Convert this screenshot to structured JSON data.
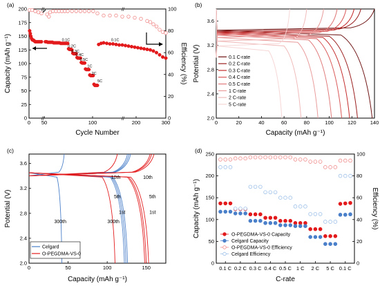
{
  "panels": [
    {
      "label": "(a)"
    },
    {
      "label": "(b)"
    },
    {
      "label": "(c)"
    },
    {
      "label": "(d)"
    }
  ],
  "colors": {
    "red": "#e31a1c",
    "pink": "#f08a8a",
    "blue": "#4a7fc9",
    "lightblue": "#9cbfe8",
    "darkred": "#7a0f0f",
    "b_series": [
      "#6e1212",
      "#9a1c1c",
      "#c42a2a",
      "#d95555",
      "#e07a7a",
      "#e99b9b",
      "#f0baba",
      "#f6d6d6"
    ]
  },
  "chart_data": [
    {
      "id": "a",
      "type": "scatter",
      "xlabel": "Cycle Number",
      "ylabel": "Capacity (mAh g⁻¹)",
      "y2label": "Efficiency (%)",
      "xticks": [
        "0",
        "50",
        "100",
        "200",
        "300"
      ],
      "yticks": [
        0,
        25,
        50,
        75,
        100,
        125,
        150,
        175,
        200
      ],
      "y2ticks": [
        0,
        20,
        40,
        60,
        80,
        100
      ],
      "ylim": [
        0,
        200
      ],
      "y2lim": [
        0,
        100
      ],
      "rate_labels": [
        {
          "text": "0.1C",
          "x": 57,
          "y": 141
        },
        {
          "text": "0.2C",
          "x": 65,
          "y": 130
        },
        {
          "text": "0.3C",
          "x": 69,
          "y": 120
        },
        {
          "text": "0.4C",
          "x": 74,
          "y": 114
        },
        {
          "text": "0.5C",
          "x": 79,
          "y": 105
        },
        {
          "text": "1C",
          "x": 86,
          "y": 93
        },
        {
          "text": "2C",
          "x": 91,
          "y": 80
        },
        {
          "text": "5C",
          "x": 97,
          "y": 66
        },
        {
          "text": "0.1C",
          "x": 137,
          "y": 141
        }
      ],
      "capacity_points": [
        [
          1,
          160
        ],
        [
          2,
          155
        ],
        [
          3,
          150
        ],
        [
          4,
          146
        ],
        [
          5,
          144
        ],
        [
          6,
          143
        ],
        [
          7,
          143
        ],
        [
          8,
          142
        ],
        [
          9,
          141
        ],
        [
          10,
          140
        ],
        [
          12,
          140
        ],
        [
          14,
          140
        ],
        [
          16,
          140
        ],
        [
          18,
          140
        ],
        [
          20,
          140
        ],
        [
          22,
          140
        ],
        [
          24,
          140
        ],
        [
          26,
          139
        ],
        [
          28,
          139
        ],
        [
          30,
          139
        ],
        [
          32,
          139
        ],
        [
          34,
          139
        ],
        [
          36,
          138
        ],
        [
          38,
          138
        ],
        [
          40,
          138
        ],
        [
          42,
          138
        ],
        [
          44,
          138
        ],
        [
          46,
          138
        ],
        [
          48,
          137
        ],
        [
          50,
          137
        ],
        [
          52,
          137
        ],
        [
          54,
          137
        ],
        [
          56,
          137
        ],
        [
          58,
          137
        ],
        [
          60,
          137
        ],
        [
          61,
          127
        ],
        [
          62,
          126
        ],
        [
          63,
          126
        ],
        [
          64,
          126
        ],
        [
          65,
          125
        ],
        [
          66,
          119
        ],
        [
          67,
          118
        ],
        [
          68,
          118
        ],
        [
          69,
          118
        ],
        [
          70,
          118
        ],
        [
          71,
          111
        ],
        [
          72,
          110
        ],
        [
          73,
          110
        ],
        [
          74,
          110
        ],
        [
          75,
          110
        ],
        [
          76,
          102
        ],
        [
          77,
          101
        ],
        [
          78,
          101
        ],
        [
          79,
          101
        ],
        [
          80,
          101
        ],
        [
          81,
          90
        ],
        [
          82,
          89
        ],
        [
          83,
          89
        ],
        [
          84,
          89
        ],
        [
          85,
          89
        ],
        [
          86,
          79
        ],
        [
          87,
          78
        ],
        [
          88,
          78
        ],
        [
          89,
          78
        ],
        [
          90,
          78
        ],
        [
          91,
          62
        ],
        [
          92,
          60
        ],
        [
          93,
          60
        ],
        [
          94,
          60
        ],
        [
          95,
          60
        ],
        [
          96,
          135
        ],
        [
          98,
          137
        ],
        [
          100,
          138
        ],
        [
          110,
          137
        ],
        [
          120,
          136
        ],
        [
          130,
          136
        ],
        [
          140,
          135
        ],
        [
          150,
          134
        ],
        [
          160,
          134
        ],
        [
          170,
          133
        ],
        [
          180,
          132
        ],
        [
          190,
          131
        ],
        [
          200,
          130
        ],
        [
          210,
          129
        ],
        [
          220,
          128
        ],
        [
          230,
          127
        ],
        [
          240,
          126
        ],
        [
          250,
          125
        ],
        [
          260,
          123
        ],
        [
          270,
          120
        ],
        [
          280,
          116
        ],
        [
          290,
          112
        ],
        [
          300,
          110
        ]
      ],
      "efficiency_points": [
        [
          1,
          99
        ],
        [
          5,
          99
        ],
        [
          10,
          98
        ],
        [
          15,
          97
        ],
        [
          20,
          96
        ],
        [
          25,
          95
        ],
        [
          28,
          93
        ],
        [
          30,
          97
        ],
        [
          35,
          98
        ],
        [
          40,
          98
        ],
        [
          45,
          98
        ],
        [
          50,
          98
        ],
        [
          55,
          98
        ],
        [
          60,
          98
        ],
        [
          65,
          98
        ],
        [
          70,
          98
        ],
        [
          75,
          98
        ],
        [
          80,
          98
        ],
        [
          85,
          98
        ],
        [
          90,
          98
        ],
        [
          95,
          96
        ],
        [
          100,
          94
        ],
        [
          120,
          94
        ],
        [
          140,
          94
        ],
        [
          160,
          93
        ],
        [
          180,
          93
        ],
        [
          200,
          92
        ],
        [
          220,
          91
        ],
        [
          240,
          89
        ],
        [
          250,
          88
        ],
        [
          260,
          86
        ],
        [
          270,
          84
        ],
        [
          280,
          81
        ],
        [
          290,
          79
        ],
        [
          300,
          78
        ]
      ]
    },
    {
      "id": "b",
      "type": "line",
      "xlabel": "Capacity (mAh g⁻¹)",
      "ylabel": "Potential (V)",
      "xlim": [
        0,
        140
      ],
      "ylim": [
        2.0,
        3.8
      ],
      "xticks": [
        0,
        20,
        40,
        60,
        80,
        100,
        120,
        140
      ],
      "yticks": [
        "2.0",
        "2.4",
        "2.8",
        "3.2",
        "3.6"
      ],
      "legend_position": "middle-right",
      "series": [
        {
          "name": "0.1 C-rate",
          "charge_end": 140,
          "discharge_end": 138,
          "plateau": 3.44
        },
        {
          "name": "0.2 C-rate",
          "charge_end": 128,
          "discharge_end": 125,
          "plateau": 3.42
        },
        {
          "name": "0.3 C-rate",
          "charge_end": 122,
          "discharge_end": 118,
          "plateau": 3.4
        },
        {
          "name": "0.4 C-rate",
          "charge_end": 115,
          "discharge_end": 111,
          "plateau": 3.38
        },
        {
          "name": "0.5 C-rate",
          "charge_end": 107,
          "discharge_end": 102,
          "plateau": 3.36
        },
        {
          "name": "1 C-rate",
          "charge_end": 95,
          "discharge_end": 90,
          "plateau": 3.32
        },
        {
          "name": "2 C-rate",
          "charge_end": 80,
          "discharge_end": 75,
          "plateau": 3.26
        },
        {
          "name": "5 C-rate",
          "charge_end": 65,
          "discharge_end": 58,
          "plateau": 3.18
        }
      ]
    },
    {
      "id": "c",
      "type": "line",
      "xlabel": "Capacity (mAh g⁻¹)",
      "ylabel": "Potential (V)",
      "xlim": [
        0,
        175
      ],
      "ylim": [
        2.0,
        3.75
      ],
      "xticks": [
        0,
        50,
        100,
        150
      ],
      "yticks": [
        "2.0",
        "2.4",
        "2.8",
        "3.2",
        "3.6"
      ],
      "legend_position": "bottom-left",
      "series": [
        {
          "name": "Celgard",
          "curves": [
            {
              "cycle": "1st",
              "discharge_end": 126,
              "charge_end": 130
            },
            {
              "cycle": "5th",
              "discharge_end": 124,
              "charge_end": 128
            },
            {
              "cycle": "10th",
              "discharge_end": 122,
              "charge_end": 126
            },
            {
              "cycle": "300th",
              "discharge_end": 42,
              "charge_end": 45
            }
          ]
        },
        {
          "name": "O-PEGDMA-VS-0",
          "curves": [
            {
              "cycle": "1st",
              "discharge_end": 153,
              "charge_end": 160
            },
            {
              "cycle": "5th",
              "discharge_end": 150,
              "charge_end": 157
            },
            {
              "cycle": "10th",
              "discharge_end": 148,
              "charge_end": 155
            },
            {
              "cycle": "300th",
              "discharge_end": 110,
              "charge_end": 113
            }
          ]
        }
      ],
      "annotations": [
        {
          "text": "10th",
          "x": 111,
          "y": 3.35
        },
        {
          "text": "10th",
          "x": 152,
          "y": 3.35
        },
        {
          "text": "5th",
          "x": 113,
          "y": 3.04
        },
        {
          "text": "5th",
          "x": 158,
          "y": 3.04
        },
        {
          "text": "1st",
          "x": 119,
          "y": 2.79
        },
        {
          "text": "1st",
          "x": 158,
          "y": 2.79
        },
        {
          "text": "300th",
          "x": 40,
          "y": 2.64
        },
        {
          "text": "300th",
          "x": 108,
          "y": 2.64
        }
      ]
    },
    {
      "id": "d",
      "type": "scatter",
      "xlabel": "C-rate",
      "ylabel": "Capacity (mAh g⁻¹)",
      "y2label": "Efficiency (%)",
      "ylim": [
        0,
        250
      ],
      "y2lim": [
        0,
        100
      ],
      "yticks": [
        0,
        50,
        100,
        150,
        200,
        250
      ],
      "y2ticks": [
        0,
        20,
        40,
        60,
        80,
        100
      ],
      "categories": [
        "0.1 C",
        "0.2 C",
        "0.3 C",
        "0.4 C",
        "0.5 C",
        "1 C",
        "2 C",
        "5 C",
        "0.1 C"
      ],
      "legend_position": "bottom-left",
      "series": [
        {
          "name": "O-PEGDMA-VS-0 Capacity",
          "axis": "left",
          "style": "filled-red",
          "values": [
            137,
            137,
            137,
            124,
            124,
            124,
            112,
            112,
            112,
            104,
            104,
            104,
            97,
            97,
            97,
            92,
            92,
            92,
            78,
            78,
            78,
            62,
            62,
            62,
            136,
            137,
            138
          ]
        },
        {
          "name": "Celgard Capacity",
          "axis": "left",
          "style": "filled-blue",
          "values": [
            118,
            118,
            118,
            114,
            114,
            114,
            97,
            97,
            97,
            92,
            92,
            92,
            87,
            87,
            87,
            85,
            85,
            85,
            60,
            60,
            60,
            44,
            44,
            44,
            111,
            111,
            112
          ]
        },
        {
          "name": "O-PEGDMA-VS-0 Efficiency",
          "axis": "right",
          "style": "open-red",
          "values": [
            95,
            95,
            95,
            96,
            96,
            96,
            97,
            97,
            97,
            97,
            97,
            97,
            97,
            97,
            97,
            95,
            95,
            95,
            93,
            93,
            93,
            88,
            88,
            88,
            94,
            94,
            94
          ]
        },
        {
          "name": "Celgard Efficiency",
          "axis": "right",
          "style": "open-blue",
          "values": [
            88,
            88,
            88,
            50,
            50,
            50,
            70,
            70,
            70,
            65,
            65,
            65,
            60,
            60,
            60,
            52,
            52,
            52,
            45,
            45,
            45,
            38,
            38,
            38,
            80,
            80,
            80
          ]
        }
      ]
    }
  ]
}
